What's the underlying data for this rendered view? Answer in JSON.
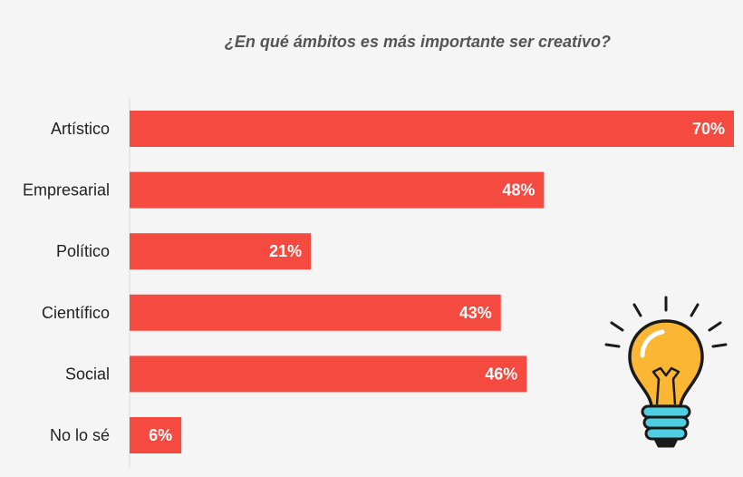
{
  "chart_data": {
    "type": "bar",
    "orientation": "horizontal",
    "title": "¿En qué ámbitos es más importante ser creativo?",
    "categories": [
      "Artístico",
      "Empresarial",
      "Político",
      "Científico",
      "Social",
      "No lo sé"
    ],
    "values": [
      70,
      48,
      21,
      43,
      46,
      6
    ],
    "value_labels": [
      "70%",
      "48%",
      "21%",
      "43%",
      "46%",
      "6%"
    ],
    "unit": "%",
    "xlim": [
      0,
      70
    ],
    "xlabel": "",
    "ylabel": "",
    "grid": false,
    "legend": "none"
  },
  "colors": {
    "bar": "#f44a40",
    "background": "#f5f5f5",
    "bulb": "#fbb733",
    "bulb_outline": "#1a1a1a",
    "bulb_base": "#4fd0e2"
  },
  "illustration": "lightbulb-icon"
}
